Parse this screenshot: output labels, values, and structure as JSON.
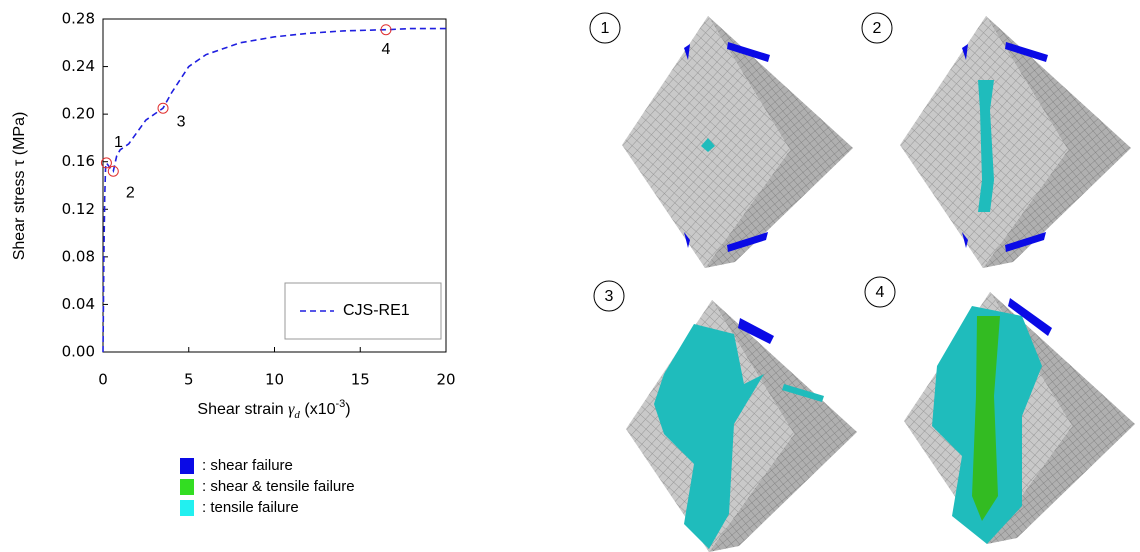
{
  "chart_data": {
    "type": "line",
    "y_label": "Shear stress  τ (MPa)",
    "x_label": {
      "text": "Shear strain ",
      "symbol": "γ",
      "sub": "d",
      "unit": " (x10",
      "sup": "-3",
      "close": ")"
    },
    "xlim": [
      0,
      20
    ],
    "ylim": [
      0,
      0.28
    ],
    "xticks": [
      0,
      5,
      10,
      15,
      20
    ],
    "yticks": [
      {
        "value": 0,
        "label": "0.00"
      },
      {
        "value": 0.04,
        "label": "0.04"
      },
      {
        "value": 0.08,
        "label": "0.08"
      },
      {
        "value": 0.12,
        "label": "0.12"
      },
      {
        "value": 0.16,
        "label": "0.16"
      },
      {
        "value": 0.2,
        "label": "0.20"
      },
      {
        "value": 0.24,
        "label": "0.24"
      },
      {
        "value": 0.28,
        "label": "0.28"
      }
    ],
    "legend_position": "lower right",
    "series": [
      {
        "name": "CJS-RE1",
        "color": "#1f1fe0",
        "x": [
          0,
          0.05,
          0.1,
          0.15,
          0.2,
          0.4,
          0.6,
          0.8,
          1,
          1.5,
          2,
          2.5,
          3,
          3.5,
          4,
          5,
          6,
          8,
          10,
          12,
          14,
          16.5,
          18,
          20
        ],
        "values": [
          0,
          0.08,
          0.13,
          0.155,
          0.159,
          0.155,
          0.152,
          0.165,
          0.17,
          0.175,
          0.185,
          0.195,
          0.2,
          0.205,
          0.218,
          0.24,
          0.25,
          0.26,
          0.265,
          0.268,
          0.27,
          0.271,
          0.272,
          0.272
        ]
      }
    ],
    "markers": {
      "color": "#e03030",
      "labels": [
        "1",
        "2",
        "3",
        "4"
      ],
      "x": [
        0.2,
        0.6,
        3.5,
        16.5
      ],
      "values": [
        0.159,
        0.152,
        0.205,
        0.271
      ]
    },
    "failure_legend": [
      {
        "color": "#0a0ae6",
        "label": ": shear failure"
      },
      {
        "color": "#33dd22",
        "label": ": shear & tensile failure"
      },
      {
        "color": "#22f0f0",
        "label": ": tensile failure"
      }
    ]
  },
  "panels": [
    "1",
    "2",
    "3",
    "4"
  ]
}
